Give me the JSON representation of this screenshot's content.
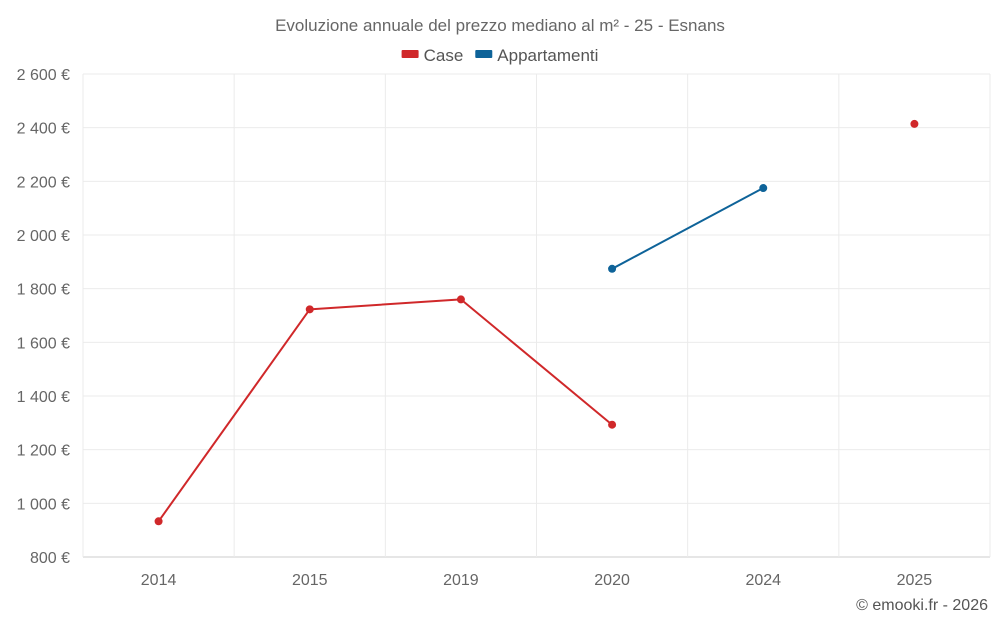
{
  "chart_data": {
    "type": "line",
    "title": "Evoluzione annuale del prezzo mediano al m² - 25 - Esnans",
    "categories": [
      "2014",
      "2015",
      "2019",
      "2020",
      "2024",
      "2025"
    ],
    "y_tick_labels": [
      "800 €",
      "1 000 €",
      "1 200 €",
      "1 400 €",
      "1 600 €",
      "1 800 €",
      "2 000 €",
      "2 200 €",
      "2 400 €",
      "2 600 €"
    ],
    "ylim": [
      800,
      2600
    ],
    "ystep": 200,
    "xlabel": "",
    "ylabel": "",
    "grid": true,
    "legend_position": "top-center",
    "series": [
      {
        "name": "Case",
        "color": "#d0282a",
        "values": [
          933,
          1723,
          1760,
          1293,
          null,
          2414
        ]
      },
      {
        "name": "Appartamenti",
        "color": "#0e6399",
        "values": [
          null,
          null,
          null,
          1874,
          2175,
          null
        ]
      }
    ]
  },
  "credit": "© emooki.fr - 2026"
}
